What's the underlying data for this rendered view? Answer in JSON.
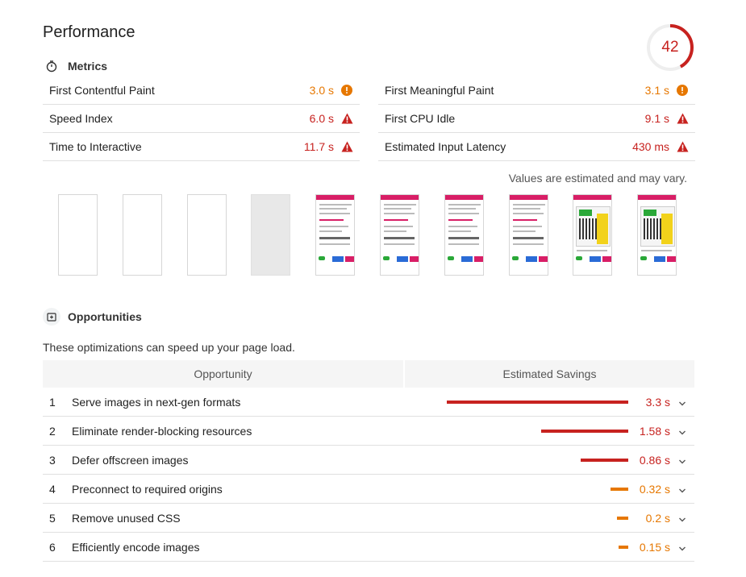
{
  "header": {
    "title": "Performance",
    "score": "42"
  },
  "metrics": {
    "title": "Metrics",
    "left": [
      {
        "label": "First Contentful Paint",
        "value": "3.0 s",
        "status": "average"
      },
      {
        "label": "Speed Index",
        "value": "6.0 s",
        "status": "fail"
      },
      {
        "label": "Time to Interactive",
        "value": "11.7 s",
        "status": "fail"
      }
    ],
    "right": [
      {
        "label": "First Meaningful Paint",
        "value": "3.1 s",
        "status": "average"
      },
      {
        "label": "First CPU Idle",
        "value": "9.1 s",
        "status": "fail"
      },
      {
        "label": "Estimated Input Latency",
        "value": "430 ms",
        "status": "fail"
      }
    ],
    "note": "Values are estimated and may vary."
  },
  "filmstrip": {
    "frames": [
      "blank",
      "blank",
      "blank",
      "grey",
      "page",
      "page",
      "page",
      "page",
      "promo",
      "promo"
    ]
  },
  "opportunities": {
    "title": "Opportunities",
    "description": "These optimizations can speed up your page load.",
    "col_opportunity": "Opportunity",
    "col_savings": "Estimated Savings",
    "rows": [
      {
        "num": "1",
        "title": "Serve images in next-gen formats",
        "savings": "3.3 s",
        "severity": "fail"
      },
      {
        "num": "2",
        "title": "Eliminate render-blocking resources",
        "savings": "1.58 s",
        "severity": "fail"
      },
      {
        "num": "3",
        "title": "Defer offscreen images",
        "savings": "0.86 s",
        "severity": "fail"
      },
      {
        "num": "4",
        "title": "Preconnect to required origins",
        "savings": "0.32 s",
        "severity": "average"
      },
      {
        "num": "5",
        "title": "Remove unused CSS",
        "savings": "0.2 s",
        "severity": "average"
      },
      {
        "num": "6",
        "title": "Efficiently encode images",
        "savings": "0.15 s",
        "severity": "average"
      }
    ]
  },
  "colors": {
    "fail": "#c7221f",
    "average": "#e67700",
    "header_bg": "#f5f5f5"
  },
  "icons": {
    "metrics": "stopwatch-icon",
    "opportunities": "opportunity-icon",
    "average": "info-circle-icon",
    "fail": "warning-triangle-icon",
    "expand": "chevron-down-icon"
  }
}
